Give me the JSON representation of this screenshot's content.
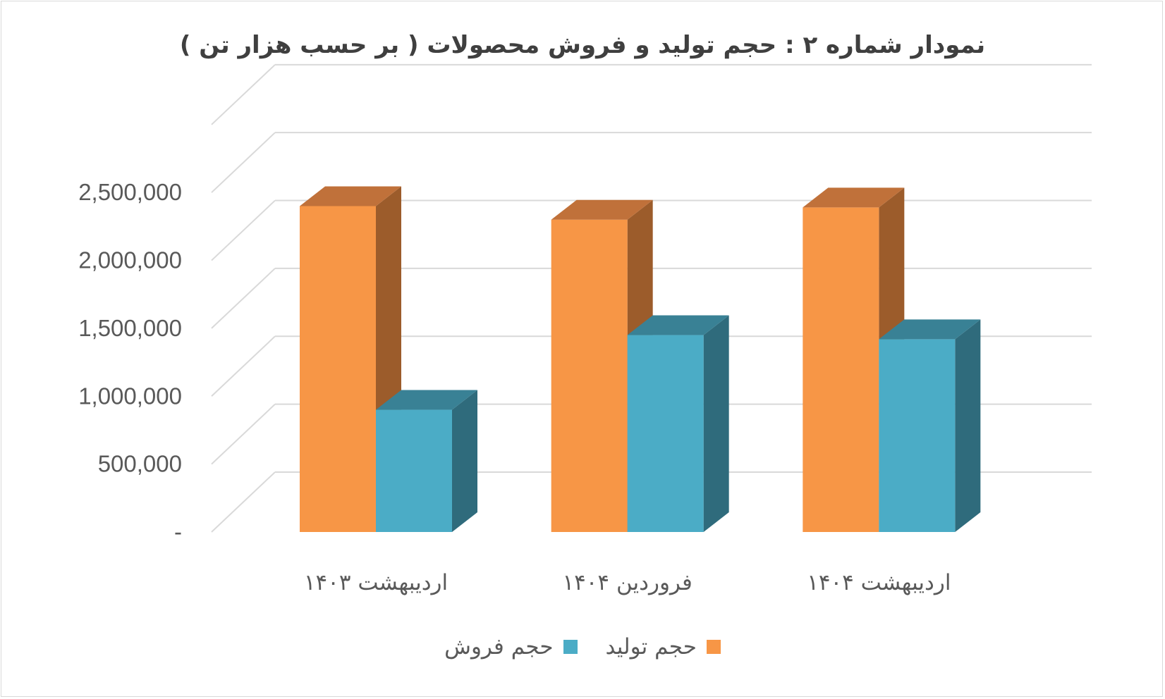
{
  "title": "نمودار شماره ۲ : حجم  تولید و فروش محصولات ( بر حسب هزار تن )",
  "colors": {
    "production_front": "#f79646",
    "production_top": "#c0713a",
    "production_side": "#9c5c2b",
    "sales_front": "#4bacc6",
    "sales_top": "#398195",
    "sales_side": "#2f6b7c",
    "grid": "#d9d9d9",
    "text": "#595959"
  },
  "chart_data": {
    "type": "bar",
    "categories": [
      "اردیبهشت ۱۴۰۳",
      "فروردین ۱۴۰۴",
      "اردیبهشت ۱۴۰۴"
    ],
    "series": [
      {
        "name": "حجم تولید",
        "values": [
          2400000,
          2300000,
          2390000
        ]
      },
      {
        "name": "حجم فروش",
        "values": [
          900000,
          1450000,
          1420000
        ]
      }
    ],
    "ylim": [
      0,
      2750000
    ],
    "yticks": [
      0,
      500000,
      1000000,
      1500000,
      2000000,
      2500000
    ],
    "ytick_labels": [
      "-",
      "500,000",
      "1,000,000",
      "1,500,000",
      "2,000,000",
      "2,500,000"
    ],
    "grid": true,
    "legend_position": "bottom",
    "three_d": true
  }
}
